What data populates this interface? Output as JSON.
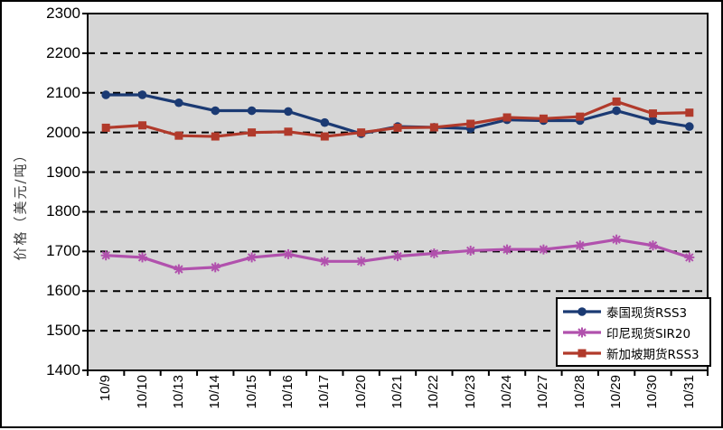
{
  "chart_data": {
    "type": "line",
    "title": "",
    "ylabel": "价格（美元/吨）",
    "xlabel": "",
    "ylim": [
      1400,
      2300
    ],
    "ytick_step": 100,
    "grid": "horizontal-dashed",
    "legend_position": "bottom-right",
    "plot_bg_color": "#D6D6D6",
    "grid_color": "#000000",
    "categories": [
      "10/9",
      "10/10",
      "10/13",
      "10/14",
      "10/15",
      "10/16",
      "10/17",
      "10/20",
      "10/21",
      "10/22",
      "10/23",
      "10/24",
      "10/27",
      "10/28",
      "10/29",
      "10/30",
      "10/31"
    ],
    "series": [
      {
        "name": "泰国现货RSS3",
        "marker": "circle",
        "color": "#1B3A73",
        "values": [
          2095,
          2095,
          2075,
          2055,
          2055,
          2053,
          2025,
          1997,
          2015,
          2013,
          2010,
          2032,
          2030,
          2030,
          2055,
          2030,
          2015
        ]
      },
      {
        "name": "印尼现货SIR20",
        "marker": "star",
        "color": "#B151AD",
        "values": [
          1690,
          1685,
          1655,
          1660,
          1685,
          1693,
          1675,
          1675,
          1688,
          1695,
          1702,
          1705,
          1705,
          1715,
          1730,
          1715,
          1685
        ]
      },
      {
        "name": "新加坡期货RSS3",
        "marker": "square",
        "color": "#B13A2B",
        "values": [
          2012,
          2018,
          1992,
          1990,
          2000,
          2002,
          1990,
          2000,
          2012,
          2013,
          2022,
          2038,
          2035,
          2040,
          2078,
          2048,
          2050
        ]
      }
    ]
  }
}
